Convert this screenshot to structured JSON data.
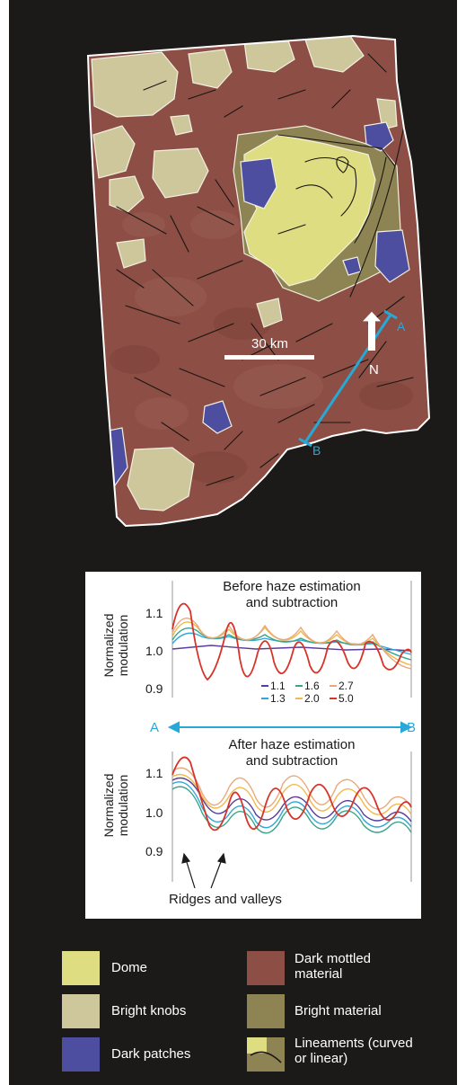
{
  "map": {
    "scale_label": "30 km",
    "north_label": "N",
    "profile_start": "A",
    "profile_end": "B"
  },
  "plot": {
    "ylabel_line1": "Normalized",
    "ylabel_line2": "modulation",
    "top": {
      "title_line1": "Before haze estimation",
      "title_line2": "and subtraction",
      "ticks": [
        "1.1",
        "1.0",
        "0.9"
      ]
    },
    "axis_start": "A",
    "axis_end": "B",
    "bottom": {
      "title_line1": "After haze estimation",
      "title_line2": "and subtraction",
      "ticks": [
        "1.1",
        "1.0",
        "0.9"
      ],
      "annotation": "Ridges and valleys"
    },
    "series_legend": [
      {
        "label": "1.1",
        "color": "#5a3d9a"
      },
      {
        "label": "1.6",
        "color": "#3aa58a"
      },
      {
        "label": "2.7",
        "color": "#e8a97a"
      },
      {
        "label": "1.3",
        "color": "#32a6d8"
      },
      {
        "label": "2.0",
        "color": "#f0b94a"
      },
      {
        "label": "5.0",
        "color": "#d7332a"
      }
    ]
  },
  "legend": [
    {
      "label_line1": "Dome",
      "label_line2": "",
      "color": "#dedd82"
    },
    {
      "label_line1": "Dark mottled",
      "label_line2": "material",
      "color": "#8c4e45"
    },
    {
      "label_line1": "Bright knobs",
      "label_line2": "",
      "color": "#cdc79b"
    },
    {
      "label_line1": "Bright material",
      "label_line2": "",
      "color": "#8e8453"
    },
    {
      "label_line1": "Dark patches",
      "label_line2": "",
      "color": "#4d4ea0"
    },
    {
      "label_line1": "Lineaments (curved",
      "label_line2": "or linear)",
      "color": "#8e8453"
    }
  ],
  "colors": {
    "background": "#1b1a18",
    "profile_line": "#27a9d8",
    "outline": "#ffffff"
  }
}
